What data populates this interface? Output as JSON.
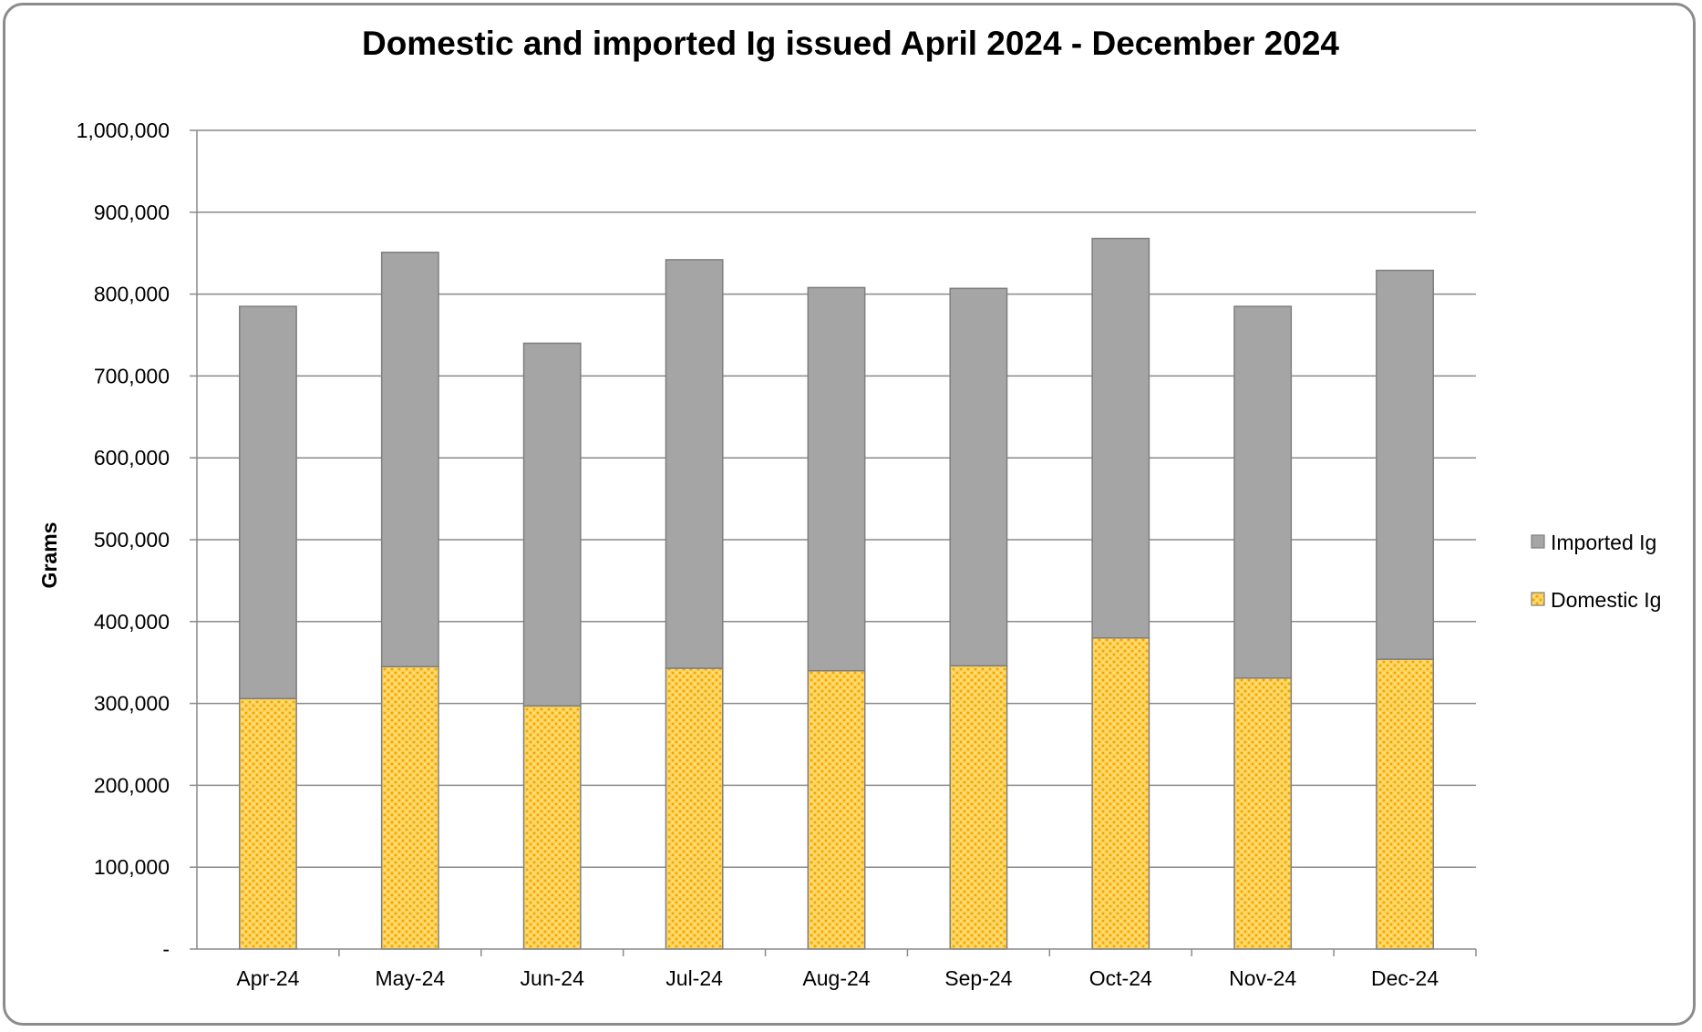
{
  "chart_data": {
    "type": "bar",
    "stacked": true,
    "title": "Domestic and imported Ig issued April 2024 - December 2024",
    "xlabel": "",
    "ylabel": "Grams",
    "categories": [
      "Apr-24",
      "May-24",
      "Jun-24",
      "Jul-24",
      "Aug-24",
      "Sep-24",
      "Oct-24",
      "Nov-24",
      "Dec-24"
    ],
    "series": [
      {
        "name": "Domestic Ig",
        "color": "#ffc000",
        "pattern": "dotted",
        "values": [
          306000,
          345000,
          297000,
          343000,
          340000,
          346000,
          380000,
          331000,
          354000
        ]
      },
      {
        "name": "Imported Ig",
        "color": "#a5a5a5",
        "values": [
          479000,
          506000,
          443000,
          499000,
          468000,
          461000,
          488000,
          454000,
          475000
        ]
      }
    ],
    "ylim": [
      0,
      1000000
    ],
    "yticks": [
      "-",
      "100,000",
      "200,000",
      "300,000",
      "400,000",
      "500,000",
      "600,000",
      "700,000",
      "800,000",
      "900,000",
      "1,000,000"
    ],
    "grid": true,
    "legend": {
      "placement": "right",
      "entries": [
        "Imported Ig",
        "Domestic Ig"
      ]
    }
  }
}
